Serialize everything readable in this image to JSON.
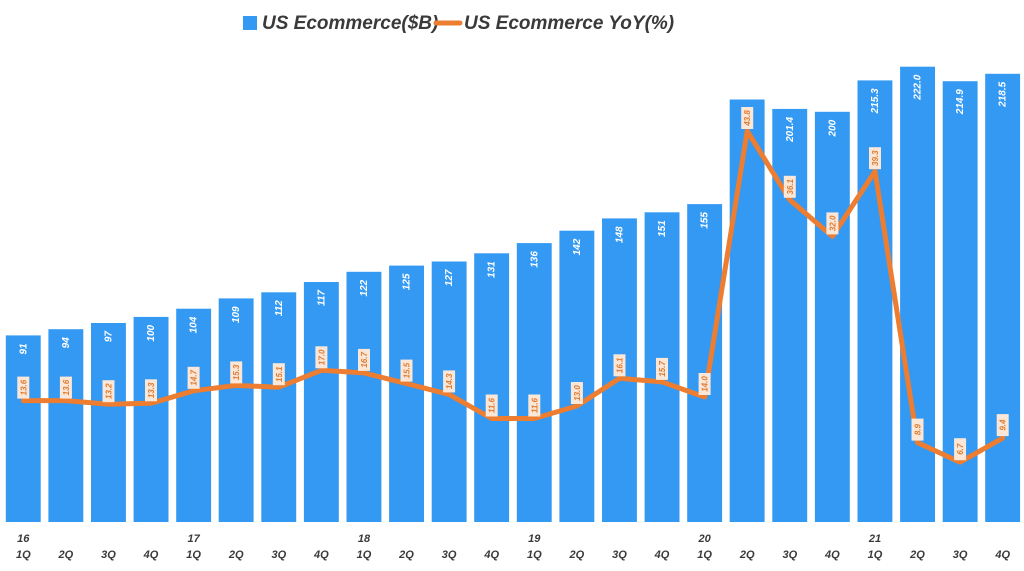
{
  "chart_data": {
    "type": "bar",
    "title": "",
    "xlabel": "",
    "ylabel": "",
    "legend_position": "top-center",
    "grid": false,
    "colors": {
      "bars": "#3399f3",
      "line": "#ed7d31",
      "yoy_label_bg": "#fbe7d8",
      "text": "#3a3a3a"
    },
    "categories": [
      {
        "year": "16",
        "quarter": "1Q"
      },
      {
        "year": "",
        "quarter": "2Q"
      },
      {
        "year": "",
        "quarter": "3Q"
      },
      {
        "year": "",
        "quarter": "4Q"
      },
      {
        "year": "17",
        "quarter": "1Q"
      },
      {
        "year": "",
        "quarter": "2Q"
      },
      {
        "year": "",
        "quarter": "3Q"
      },
      {
        "year": "",
        "quarter": "4Q"
      },
      {
        "year": "18",
        "quarter": "1Q"
      },
      {
        "year": "",
        "quarter": "2Q"
      },
      {
        "year": "",
        "quarter": "3Q"
      },
      {
        "year": "",
        "quarter": "4Q"
      },
      {
        "year": "19",
        "quarter": "1Q"
      },
      {
        "year": "",
        "quarter": "2Q"
      },
      {
        "year": "",
        "quarter": "3Q"
      },
      {
        "year": "",
        "quarter": "4Q"
      },
      {
        "year": "20",
        "quarter": "1Q"
      },
      {
        "year": "",
        "quarter": "2Q"
      },
      {
        "year": "",
        "quarter": "3Q"
      },
      {
        "year": "",
        "quarter": "4Q"
      },
      {
        "year": "21",
        "quarter": "1Q"
      },
      {
        "year": "",
        "quarter": "2Q"
      },
      {
        "year": "",
        "quarter": "3Q"
      },
      {
        "year": "",
        "quarter": "4Q"
      }
    ],
    "series": [
      {
        "name": "US Ecommerce($B)",
        "kind": "bar",
        "axis": "left",
        "ylim": [
          0,
          235
        ],
        "values": [
          91,
          94,
          97,
          100,
          104,
          109,
          112,
          117,
          122,
          125,
          127,
          131,
          136,
          142,
          148,
          151,
          155,
          206,
          201.4,
          200,
          215.3,
          222.0,
          214.9,
          218.5
        ],
        "labels": [
          "91",
          "94",
          "97",
          "100",
          "104",
          "109",
          "112",
          "117",
          "122",
          "125",
          "127",
          "131",
          "136",
          "142",
          "148",
          "151",
          "155",
          "206",
          "201.4",
          "200",
          "215.3",
          "222.0",
          "214.9",
          "218.5"
        ]
      },
      {
        "name": "US Ecommerce YoY(%)",
        "kind": "line",
        "axis": "right",
        "ylim": [
          0,
          54
        ],
        "values": [
          13.6,
          13.6,
          13.2,
          13.3,
          14.7,
          15.3,
          15.1,
          17.0,
          16.7,
          15.5,
          14.3,
          11.6,
          11.6,
          13.0,
          16.1,
          15.7,
          14.0,
          43.8,
          36.1,
          32.0,
          39.3,
          8.9,
          6.7,
          9.4
        ],
        "labels": [
          "13.6",
          "13.6",
          "13.2",
          "13.3",
          "14.7",
          "15.3",
          "15.1",
          "17.0",
          "16.7",
          "15.5",
          "14.3",
          "11.6",
          "11.6",
          "13.0",
          "16.1",
          "15.7",
          "14.0",
          "43.8",
          "36.1",
          "32.0",
          "39.3",
          "8.9",
          "6.7",
          "9.4"
        ]
      }
    ]
  }
}
